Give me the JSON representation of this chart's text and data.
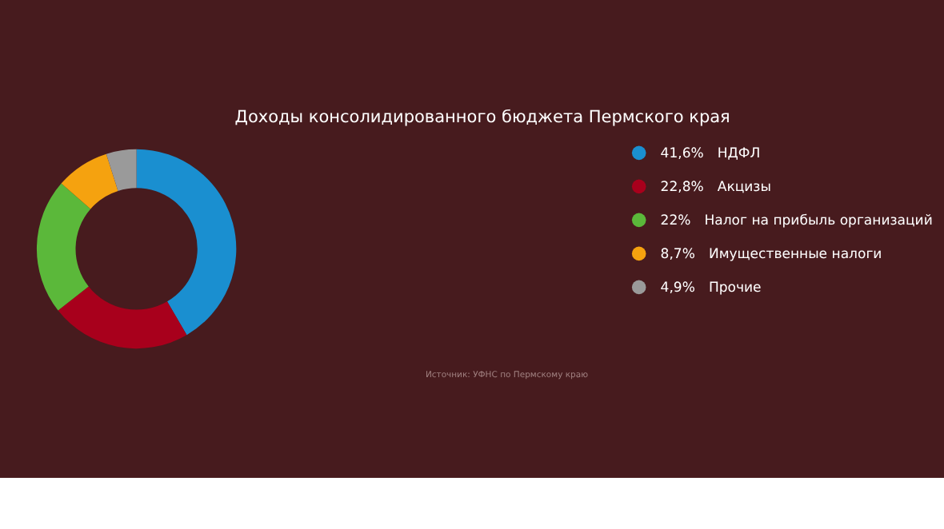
{
  "chart_data": {
    "type": "donut",
    "title": "Доходы консолидированного бюджета Пермского края",
    "categories": [
      "НДФЛ",
      "Акцизы",
      "Налог на прибыль организаций",
      "Имущественные налоги",
      "Прочие"
    ],
    "values": [
      41.6,
      22.8,
      22,
      8.7,
      4.9
    ],
    "value_labels": [
      "41,6%",
      "22,8%",
      "22%",
      "8,7%",
      "4,9%"
    ],
    "colors": [
      "#1a8fd0",
      "#a8001c",
      "#5bb83a",
      "#f5a20f",
      "#9a9a9a"
    ],
    "legend": "right",
    "annotations": [
      "Источник: УФНС по Пермскому краю"
    ]
  }
}
